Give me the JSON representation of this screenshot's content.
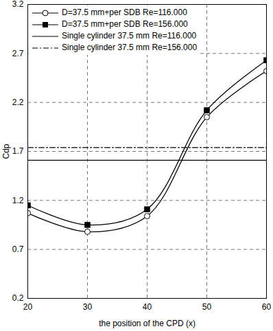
{
  "chart_data": {
    "type": "line",
    "x_label": "the position of the CPD (x)",
    "y_label": "Cdp",
    "x": [
      20,
      30,
      40,
      50,
      60
    ],
    "series": [
      {
        "name": "D=37.5 mm+per SDB Re=116.000",
        "color": "#000000",
        "marker": "circle-open",
        "line_style": "solid",
        "values": [
          1.07,
          0.88,
          1.04,
          2.05,
          2.52
        ]
      },
      {
        "name": "D=37.5 mm+per SDB Re=156.000",
        "color": "#000000",
        "marker": "square",
        "line_style": "solid",
        "values": [
          1.15,
          0.95,
          1.11,
          2.12,
          2.63
        ]
      },
      {
        "name": "Single cylinder 37.5 mm Re=116.000",
        "color": "#000000",
        "marker": "none",
        "line_style": "solid",
        "values": [
          1.61,
          1.61,
          1.61,
          1.61,
          1.61
        ]
      },
      {
        "name": "Single cylinder 37.5 mm Re=156.000",
        "color": "#000000",
        "marker": "none",
        "line_style": "dashdot",
        "values": [
          1.74,
          1.74,
          1.74,
          1.74,
          1.74
        ]
      }
    ],
    "xlim": [
      20,
      60
    ],
    "xticks": [
      20,
      30,
      40,
      50,
      60
    ],
    "ylim": [
      0.2,
      3.2
    ],
    "yticks": [
      0.2,
      0.7,
      1.2,
      1.7,
      2.2,
      2.7,
      3.2
    ],
    "grid": true,
    "legend": "top-left"
  }
}
